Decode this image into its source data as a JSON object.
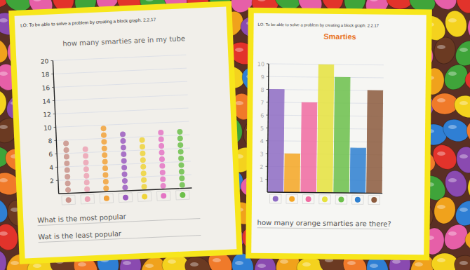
{
  "chart_data": [
    {
      "type": "bar",
      "title": "how many smarties are in my tube",
      "annotations": [
        "LO: To be able to solve a problem by creating a block graph.  2.2.17",
        "What is the most popular",
        "Wat is the least popular"
      ],
      "categories": [
        null,
        null,
        null,
        null,
        null,
        null,
        null
      ],
      "values": [
        8,
        7,
        10,
        9,
        8,
        9,
        9
      ],
      "colors": [
        "#c9928a",
        "#eca2b4",
        "#f2a23a",
        "#9b5cc0",
        "#efd43a",
        "#e474c4",
        "#6cbf4a"
      ],
      "marker": "dot",
      "ylim": [
        0,
        20
      ],
      "yticks": [
        2,
        4,
        6,
        8,
        10,
        12,
        14,
        16,
        18,
        20
      ],
      "grid": true
    },
    {
      "type": "bar",
      "title": "Smarties",
      "annotations": [
        "LO: To be able to solve a problem by creating a block graph.  2.2.17",
        "how many orange smarties are there?"
      ],
      "categories": [
        null,
        null,
        null,
        null,
        null,
        null,
        null
      ],
      "values": [
        8,
        3,
        7,
        10,
        9,
        3.5,
        8
      ],
      "colors": [
        "#8e6bc4",
        "#f5a623",
        "#f06aa0",
        "#e6e23c",
        "#6cc04a",
        "#2d7fd0",
        "#8b5a3c"
      ],
      "ylim": [
        0,
        10
      ],
      "yticks": [
        1,
        2,
        3,
        4,
        5,
        6,
        7,
        8,
        9,
        10
      ],
      "grid": true
    }
  ]
}
